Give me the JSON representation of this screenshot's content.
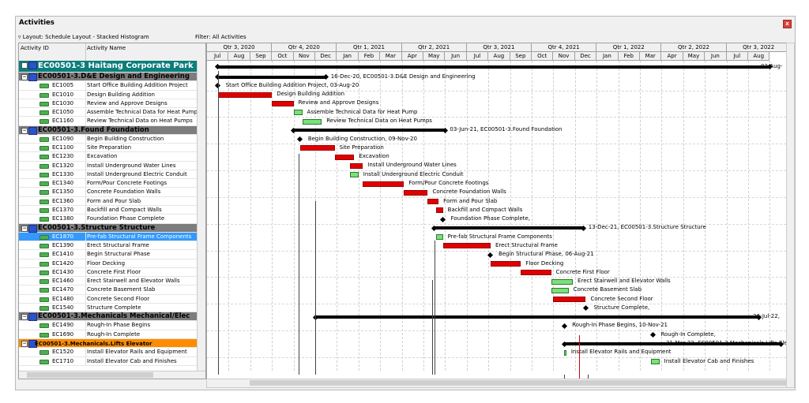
{
  "window": {
    "title": "Activities",
    "close": "x"
  },
  "layout_label": "Layout: Schedule Layout - Stacked Histogram",
  "filter_label": "Filter: All Activities",
  "columns": {
    "id": "Activity ID",
    "name": "Activity Name"
  },
  "quarters": [
    "Qtr 3, 2020",
    "Qtr 4, 2020",
    "Qtr 1, 2021",
    "Qtr 2, 2021",
    "Qtr 3, 2021",
    "Qtr 4, 2021",
    "Qtr 1, 2022",
    "Qtr 2, 2022",
    "Qtr 3, 2022"
  ],
  "months": [
    "Jul",
    "Aug",
    "Sep",
    "Oct",
    "Nov",
    "Dec",
    "Jan",
    "Feb",
    "Mar",
    "Apr",
    "May",
    "Jun",
    "Jul",
    "Aug",
    "Sep",
    "Oct",
    "Nov",
    "Dec",
    "Jan",
    "Feb",
    "Mar",
    "Apr",
    "May",
    "Jun",
    "Jul",
    "Aug"
  ],
  "rows": [
    {
      "type": "proj",
      "id": "EC00501-3",
      "name": "Haitang Corporate Park"
    },
    {
      "type": "wbs",
      "id": "EC00501-3.D&E",
      "name": "Design and Engineering"
    },
    {
      "type": "act",
      "id": "EC1005",
      "name": "Start Office Building Addition Project"
    },
    {
      "type": "act",
      "id": "EC1010",
      "name": "Design Building Addition"
    },
    {
      "type": "act",
      "id": "EC1030",
      "name": "Review and Approve Designs"
    },
    {
      "type": "act",
      "id": "EC1050",
      "name": "Assemble Technical Data for Heat Pump"
    },
    {
      "type": "act",
      "id": "EC1160",
      "name": "Review Technical Data on Heat Pumps"
    },
    {
      "type": "wbs",
      "id": "EC00501-3.Found",
      "name": "Foundation"
    },
    {
      "type": "act",
      "id": "EC1090",
      "name": "Begin Building Construction"
    },
    {
      "type": "act",
      "id": "EC1100",
      "name": "Site Preparation"
    },
    {
      "type": "act",
      "id": "EC1230",
      "name": "Excavation"
    },
    {
      "type": "act",
      "id": "EC1320",
      "name": "Install Underground Water Lines"
    },
    {
      "type": "act",
      "id": "EC1330",
      "name": "Install Underground Electric Conduit"
    },
    {
      "type": "act",
      "id": "EC1340",
      "name": "Form/Pour Concrete Footings"
    },
    {
      "type": "act",
      "id": "EC1350",
      "name": "Concrete Foundation Walls"
    },
    {
      "type": "act",
      "id": "EC1360",
      "name": "Form and Pour Slab"
    },
    {
      "type": "act",
      "id": "EC1370",
      "name": "Backfill and Compact Walls"
    },
    {
      "type": "act",
      "id": "EC1380",
      "name": "Foundation Phase Complete"
    },
    {
      "type": "wbs",
      "id": "EC00501-3.Structure",
      "name": "Structure"
    },
    {
      "type": "sel",
      "id": "EC1870",
      "name": "Pre-fab Structural Frame Components"
    },
    {
      "type": "act",
      "id": "EC1390",
      "name": "Erect Structural Frame"
    },
    {
      "type": "act",
      "id": "EC1410",
      "name": "Begin Structural Phase"
    },
    {
      "type": "act",
      "id": "EC1420",
      "name": "Floor Decking"
    },
    {
      "type": "act",
      "id": "EC1430",
      "name": "Concrete First Floor"
    },
    {
      "type": "act",
      "id": "EC1460",
      "name": "Erect Stairwell and Elevator Walls"
    },
    {
      "type": "act",
      "id": "EC1470",
      "name": "Concrete Basement Slab"
    },
    {
      "type": "act",
      "id": "EC1480",
      "name": "Concrete Second Floor"
    },
    {
      "type": "act",
      "id": "EC1540",
      "name": "Structure Complete"
    },
    {
      "type": "wbs",
      "id": "EC00501-3.Mechanicals",
      "name": "Mechanical/Elec"
    },
    {
      "type": "act",
      "id": "EC1490",
      "name": "Rough-In Phase Begins"
    },
    {
      "type": "act",
      "id": "EC1690",
      "name": "Rough-In Complete"
    },
    {
      "type": "wbs2",
      "id": "EC00501-3.Mechanicals.Lifts",
      "name": "Elevator"
    },
    {
      "type": "act",
      "id": "EC1520",
      "name": "Install Elevator Rails and Equipment"
    },
    {
      "type": "act",
      "id": "EC1710",
      "name": "Install Elevator Cab and Finishes"
    }
  ],
  "bar_labels": [
    "03-Aug-",
    "16-Dec-20, EC00501-3.D&E  Design and Engineering",
    "Start Office Building Addition Project, 03-Aug-20",
    "Design Building Addition",
    "Review and Approve Designs",
    "Assemble Technical Data for Heat Pump",
    "Review Technical Data on Heat Pumps",
    "03-Jun-21, EC00501-3.Found  Foundation",
    "Begin Building Construction, 09-Nov-20",
    "Site Preparation",
    "Excavation",
    "Install Underground Water Lines",
    "Install Underground Electric Conduit",
    "Form/Pour Concrete Footings",
    "Concrete Foundation Walls",
    "Form and Pour Slab",
    "Backfill and Compact Walls",
    "Foundation Phase Complete,",
    "13-Dec-21, EC00501-3.Structure  Structure",
    "Pre-fab Structural Frame Components",
    "Erect Structural Frame",
    "Begin Structural Phase, 06-Aug-21",
    "Floor Decking",
    "Concrete First Floor",
    "Erect Stairwell and Elevator Walls",
    "Concrete Basement Slab",
    "Concrete Second Floor",
    "Structure Complete,",
    "26-Jul-22,",
    "Rough-In Phase Begins, 10-Nov-21",
    "Rough-In Complete,",
    "31-Mar-22, EC00501-3.Mechanicals.Lifts  Elev",
    "Install Elevator Rails and Equipment",
    "Install Elevator Cab and Finishes"
  ]
}
